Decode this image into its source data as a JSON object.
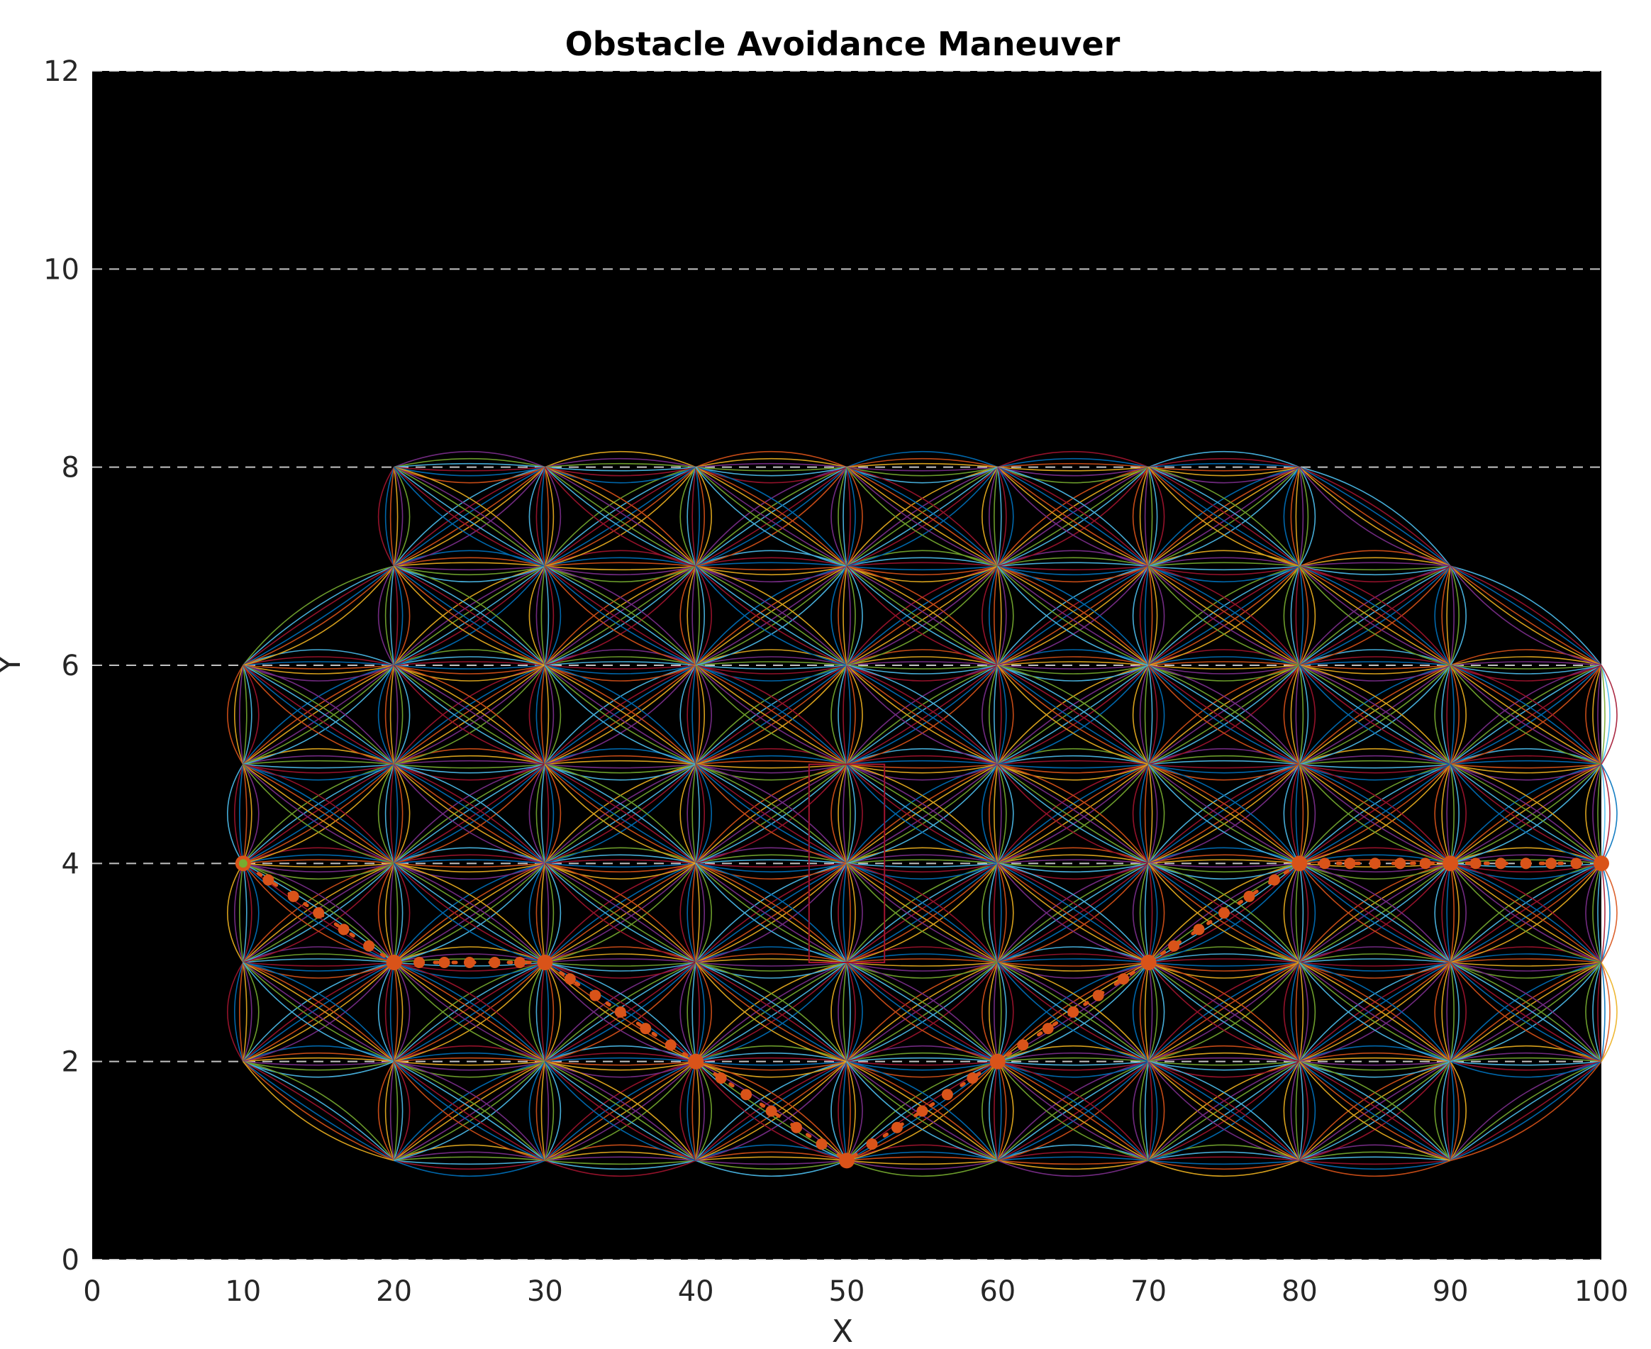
{
  "chart_data": {
    "type": "line",
    "title": "Obstacle Avoidance Maneuver",
    "xlabel": "X",
    "ylabel": "Y",
    "xlim": [
      0,
      100
    ],
    "ylim": [
      0,
      12
    ],
    "xticks": [
      "0",
      "10",
      "20",
      "30",
      "40",
      "50",
      "60",
      "70",
      "80",
      "90",
      "100"
    ],
    "yticks": [
      "0",
      "2",
      "4",
      "6",
      "8",
      "10",
      "12"
    ],
    "grid": "horizontal-dashed",
    "background": "#000000",
    "colors": {
      "palette": [
        "#0072BD",
        "#D95319",
        "#EDB120",
        "#7E2F8E",
        "#77AC30",
        "#4DBEEE",
        "#A2142F"
      ],
      "path": "#D95319",
      "obstacle": "#A2142F",
      "grid": "#E6E6E6"
    },
    "lattice_nodes": [
      [
        10,
        2
      ],
      [
        10,
        3
      ],
      [
        10,
        4
      ],
      [
        10,
        5
      ],
      [
        10,
        6
      ],
      [
        20,
        1
      ],
      [
        20,
        2
      ],
      [
        20,
        3
      ],
      [
        20,
        4
      ],
      [
        20,
        5
      ],
      [
        20,
        6
      ],
      [
        20,
        7
      ],
      [
        20,
        8
      ],
      [
        30,
        1
      ],
      [
        30,
        2
      ],
      [
        30,
        3
      ],
      [
        30,
        4
      ],
      [
        30,
        5
      ],
      [
        30,
        6
      ],
      [
        30,
        7
      ],
      [
        30,
        8
      ],
      [
        40,
        1
      ],
      [
        40,
        2
      ],
      [
        40,
        3
      ],
      [
        40,
        4
      ],
      [
        40,
        5
      ],
      [
        40,
        6
      ],
      [
        40,
        7
      ],
      [
        40,
        8
      ],
      [
        50,
        1
      ],
      [
        50,
        2
      ],
      [
        50,
        3
      ],
      [
        50,
        4
      ],
      [
        50,
        5
      ],
      [
        50,
        6
      ],
      [
        50,
        7
      ],
      [
        50,
        8
      ],
      [
        60,
        1
      ],
      [
        60,
        2
      ],
      [
        60,
        3
      ],
      [
        60,
        4
      ],
      [
        60,
        5
      ],
      [
        60,
        6
      ],
      [
        60,
        7
      ],
      [
        60,
        8
      ],
      [
        70,
        1
      ],
      [
        70,
        2
      ],
      [
        70,
        3
      ],
      [
        70,
        4
      ],
      [
        70,
        5
      ],
      [
        70,
        6
      ],
      [
        70,
        7
      ],
      [
        70,
        8
      ],
      [
        80,
        1
      ],
      [
        80,
        2
      ],
      [
        80,
        3
      ],
      [
        80,
        4
      ],
      [
        80,
        5
      ],
      [
        80,
        6
      ],
      [
        80,
        7
      ],
      [
        80,
        8
      ],
      [
        90,
        1
      ],
      [
        90,
        2
      ],
      [
        90,
        3
      ],
      [
        90,
        4
      ],
      [
        90,
        5
      ],
      [
        90,
        6
      ],
      [
        90,
        7
      ],
      [
        100,
        2
      ],
      [
        100,
        3
      ],
      [
        100,
        4
      ],
      [
        100,
        5
      ],
      [
        100,
        6
      ]
    ],
    "obstacle": {
      "x": [
        47.5,
        52.5
      ],
      "y": [
        3,
        5
      ]
    },
    "planned_path": {
      "x": [
        10,
        20,
        30,
        40,
        50,
        60,
        70,
        80,
        90,
        100
      ],
      "y": [
        4,
        3,
        3,
        2,
        1,
        2,
        3,
        4,
        4,
        4
      ]
    }
  }
}
